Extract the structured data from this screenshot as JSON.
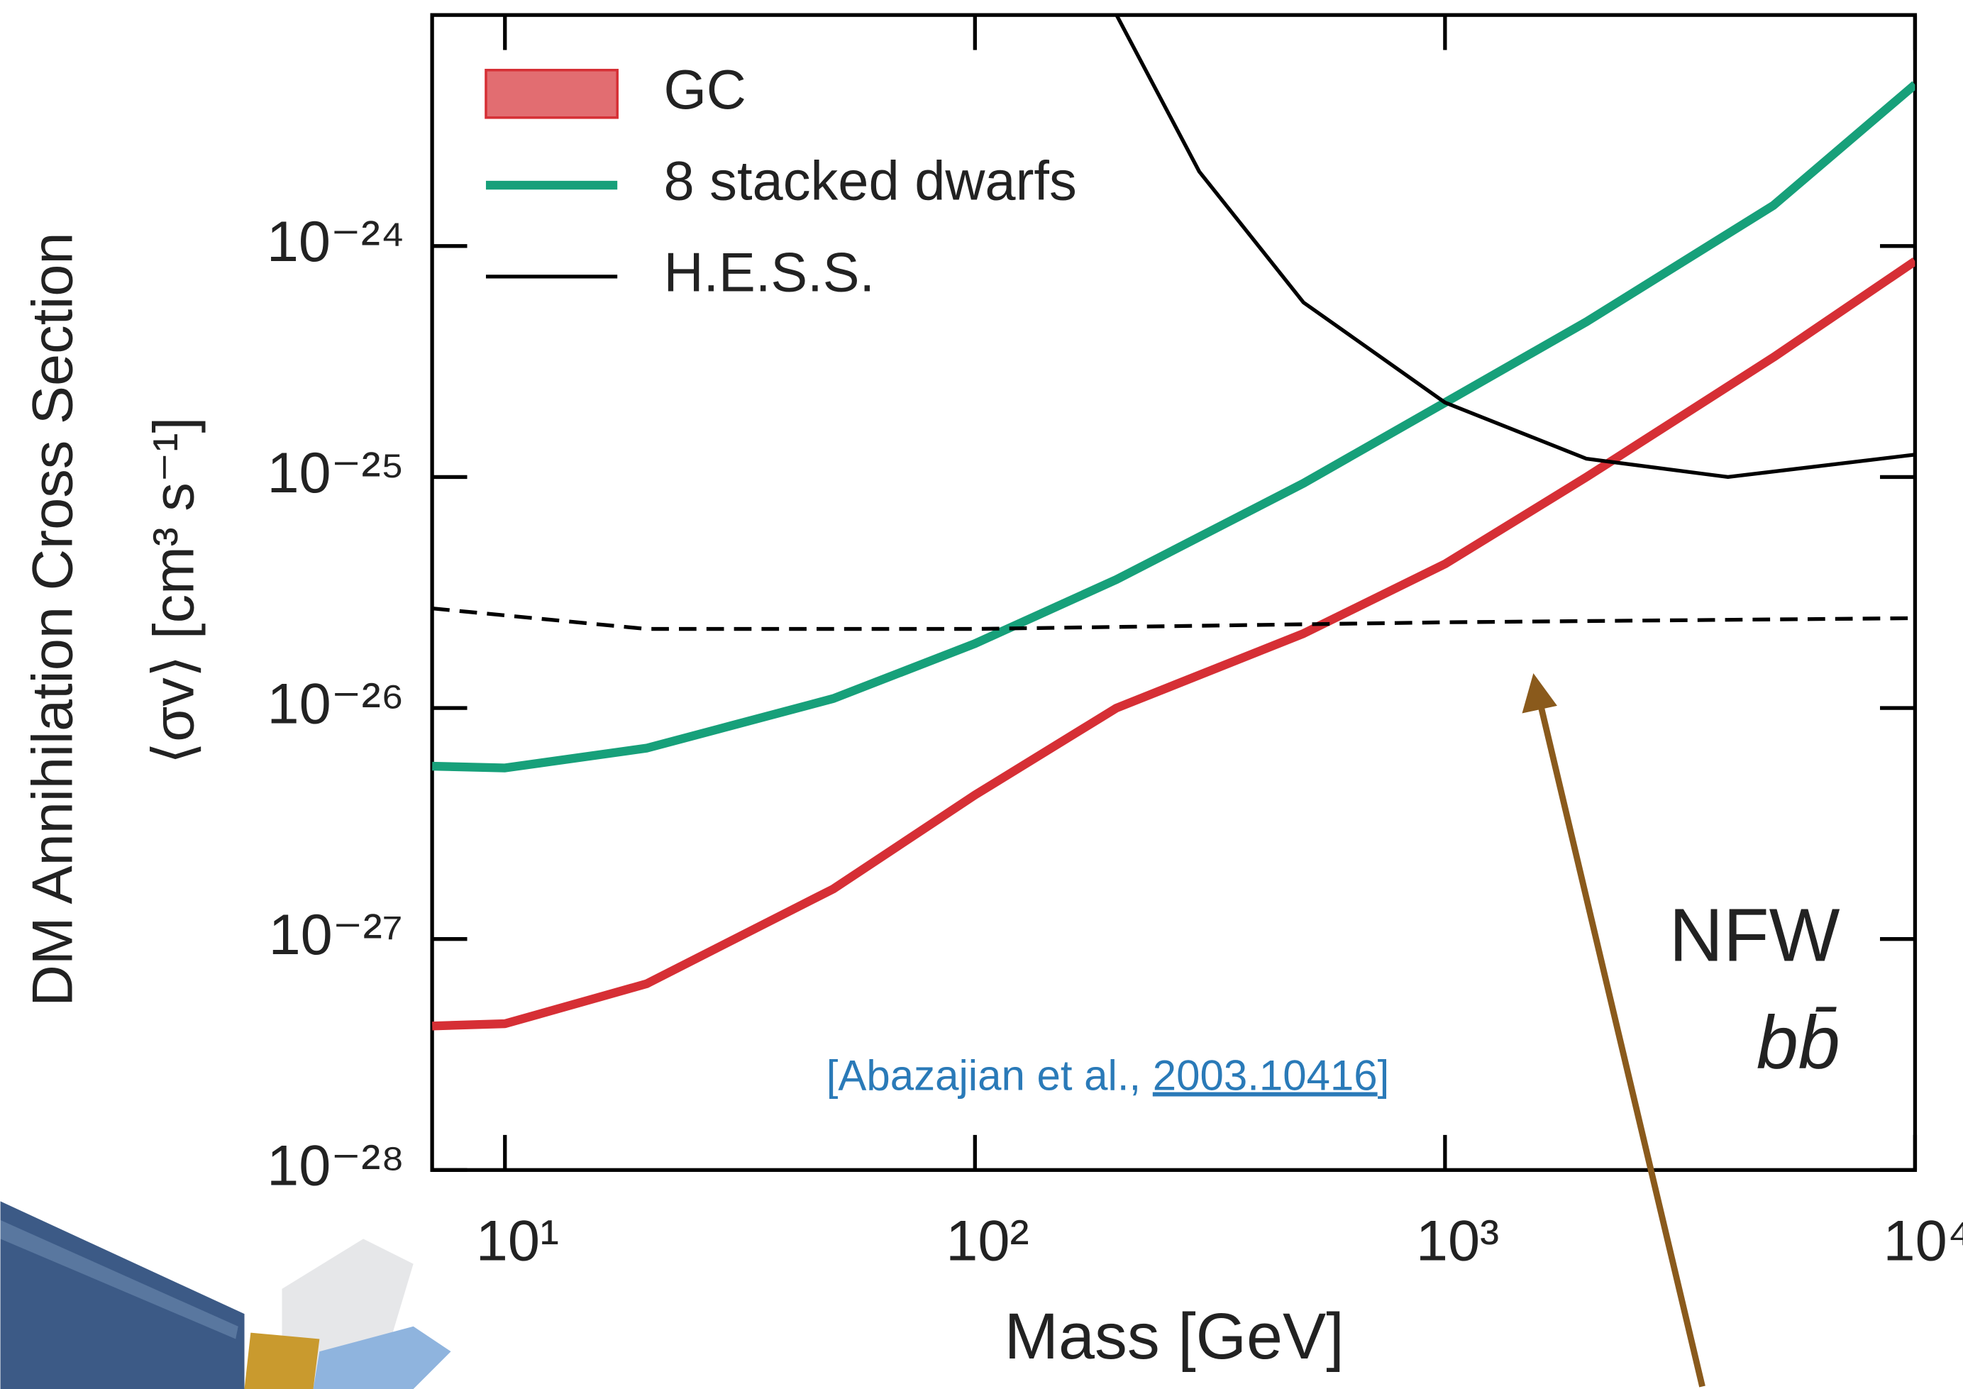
{
  "chart_data": {
    "type": "line",
    "xlabel": "Mass [GeV]",
    "ylabel": "DM Annihilation Cross Section",
    "ylabel_units": "⟨σv⟩ [cm³ s⁻¹]",
    "xscale": "log",
    "yscale": "log",
    "xlim": [
      7,
      10000
    ],
    "ylim": [
      1e-28,
      1e-23
    ],
    "xticks": [
      {
        "value": 10,
        "label": "10¹"
      },
      {
        "value": 100,
        "label": "10²"
      },
      {
        "value": 1000,
        "label": "10³"
      },
      {
        "value": 10000,
        "label": "10⁴"
      }
    ],
    "yticks": [
      {
        "value": 1e-28,
        "label": "10⁻²⁸"
      },
      {
        "value": 1e-27,
        "label": "10⁻²⁷"
      },
      {
        "value": 1e-26,
        "label": "10⁻²⁶"
      },
      {
        "value": 1e-25,
        "label": "10⁻²⁵"
      },
      {
        "value": 1e-24,
        "label": "10⁻²⁴"
      }
    ],
    "legend": "upper left",
    "series": [
      {
        "name": "GC",
        "color": "#d62f35",
        "marker": "patch",
        "linewidth": 7,
        "x": [
          7,
          10,
          20,
          50,
          100,
          200,
          500,
          1000,
          2000,
          5000,
          10000
        ],
        "values": [
          4.2e-28,
          4.3e-28,
          6.4e-28,
          1.65e-27,
          4.2e-27,
          1e-26,
          2.1e-26,
          4.2e-26,
          1e-25,
          3.3e-25,
          8.6e-25
        ]
      },
      {
        "name": "8 stacked dwarfs",
        "color": "#17a07a",
        "marker": "line",
        "linewidth": 7,
        "x": [
          7,
          10,
          20,
          50,
          100,
          200,
          500,
          1000,
          2000,
          5000,
          10000
        ],
        "values": [
          5.6e-27,
          5.5e-27,
          6.7e-27,
          1.1e-26,
          1.9e-26,
          3.6e-26,
          9.4e-26,
          2.1e-25,
          4.7e-25,
          1.5e-24,
          5e-24
        ]
      },
      {
        "name": "H.E.S.S.",
        "color": "#000000",
        "marker": "line",
        "linewidth": 3,
        "x": [
          200,
          300,
          500,
          1000,
          2000,
          4000,
          10000
        ],
        "values": [
          1e-23,
          2.1e-24,
          5.7e-25,
          2.1e-25,
          1.2e-25,
          1e-25,
          1.25e-25
        ]
      },
      {
        "color": "#000000",
        "linewidth": 3,
        "dash": true,
        "x": [
          7,
          20,
          100,
          1000,
          10000
        ],
        "values": [
          2.7e-26,
          2.2e-26,
          2.2e-26,
          2.35e-26,
          2.45e-26
        ]
      }
    ],
    "annotations": {
      "model": "NFW",
      "channel": "bb̄",
      "citation": {
        "prefix": "[Abazajian et al., ",
        "link": "2003.10416",
        "suffix": "]"
      }
    }
  }
}
